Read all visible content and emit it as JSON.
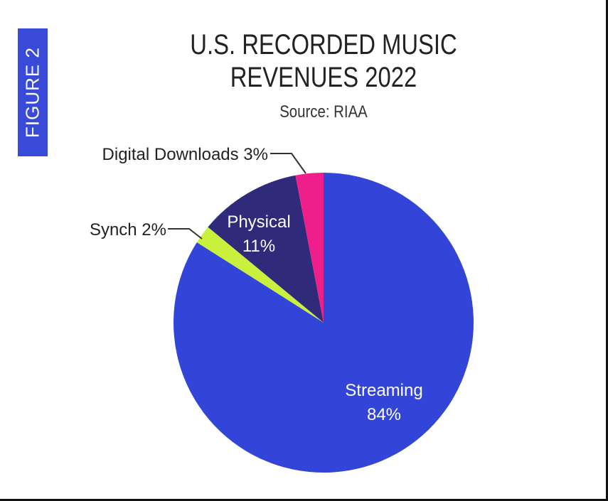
{
  "figure_label": "FIGURE 2",
  "chart_data": {
    "type": "pie",
    "title": "U.S. RECORDED MUSIC REVENUES 2022",
    "title_lines": [
      "U.S. RECORDED MUSIC",
      "REVENUES 2022"
    ],
    "subtitle": "Source: RIAA",
    "slices": [
      {
        "name": "Streaming",
        "value": 84,
        "label": "84%",
        "color": "#3345d9"
      },
      {
        "name": "Synch",
        "value": 2,
        "label": "Synch 2%",
        "color": "#c8f03c"
      },
      {
        "name": "Physical",
        "value": 11,
        "label": "11%",
        "color": "#2f2a7a"
      },
      {
        "name": "Digital Downloads",
        "value": 3,
        "label": "Digital Downloads 3%",
        "color": "#ee1f8a"
      }
    ]
  }
}
